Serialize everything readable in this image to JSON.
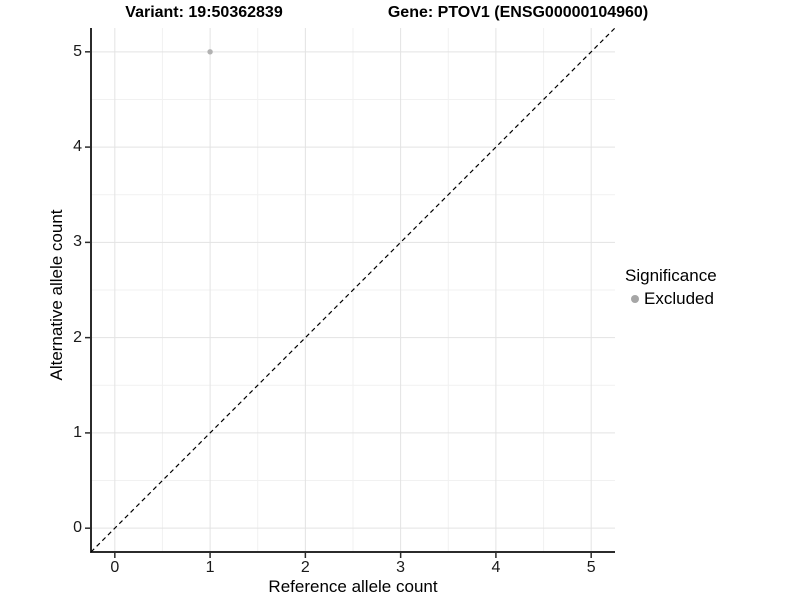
{
  "titles": {
    "variant": "Variant: 19:50362839",
    "gene": "Gene: PTOV1 (ENSG00000104960)"
  },
  "chart_data": {
    "type": "scatter",
    "title_left": "Variant: 19:50362839",
    "title_right": "Gene: PTOV1 (ENSG00000104960)",
    "xlabel": "Reference allele count",
    "ylabel": "Alternative allele count",
    "xlim": [
      -0.25,
      5.25
    ],
    "ylim": [
      -0.25,
      5.25
    ],
    "x_ticks": [
      0,
      1,
      2,
      3,
      4,
      5
    ],
    "y_ticks": [
      0,
      1,
      2,
      3,
      4,
      5
    ],
    "x_minor_ticks": [
      0.5,
      1.5,
      2.5,
      3.5,
      4.5
    ],
    "y_minor_ticks": [
      0.5,
      1.5,
      2.5,
      3.5,
      4.5
    ],
    "grid": {
      "major": true,
      "minor": true
    },
    "series": [
      {
        "name": "Excluded",
        "color": "#b2b2b2",
        "points": [
          {
            "x": 1,
            "y": 5
          }
        ]
      }
    ],
    "identity_line": {
      "type": "dashed",
      "slope": 1,
      "intercept": 0,
      "color": "#000000"
    },
    "legend": {
      "position": "right",
      "title": "Significance",
      "entries": [
        {
          "label": "Excluded",
          "color": "#a6a6a6"
        }
      ]
    }
  },
  "style_colors": {
    "grid_major": "#e3e3e3",
    "grid_minor": "#f1f1f1",
    "axis_line": "#2b2b2b",
    "tick_mark": "#2b2b2b"
  }
}
